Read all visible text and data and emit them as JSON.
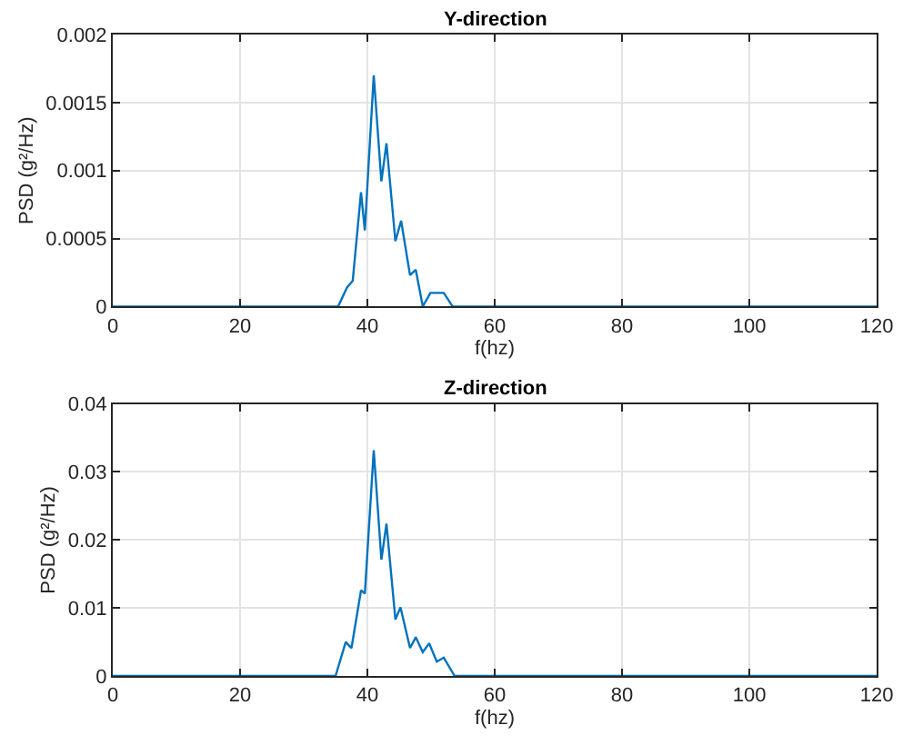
{
  "chart_data": [
    {
      "type": "line",
      "title": "Y-direction",
      "xlabel": "f(hz)",
      "ylabel": "PSD (g²/Hz)",
      "grid": true,
      "marker": "none",
      "line_style": "solid",
      "x": [
        0,
        30,
        35.4,
        36.8,
        37.7,
        39.0,
        39.6,
        41.0,
        42.2,
        43.0,
        44.4,
        45.3,
        46.7,
        47.6,
        48.7,
        49.9,
        50.9,
        52.0,
        53.4,
        120
      ],
      "series": [
        {
          "color": "#0072bd",
          "values": [
            0,
            0,
            0,
            0.00014,
            0.00019,
            0.00084,
            0.00056,
            0.0017,
            0.00092,
            0.0012,
            0.00048,
            0.00063,
            0.00023,
            0.00027,
            0,
            0.0001,
            0.0001,
            0.0001,
            0,
            0
          ]
        }
      ],
      "xlim": [
        0,
        120
      ],
      "xticks": [
        0,
        20,
        40,
        60,
        80,
        100,
        120
      ],
      "ylim": [
        0,
        0.002
      ],
      "yticks": [
        0,
        0.0005,
        0.001,
        0.0015,
        0.002
      ]
    },
    {
      "type": "line",
      "title": "Z-direction",
      "xlabel": "f(hz)",
      "ylabel": "PSD (g²/Hz)",
      "grid": true,
      "marker": "none",
      "line_style": "solid",
      "x": [
        0,
        35.0,
        36.6,
        37.5,
        39.0,
        39.6,
        41.0,
        42.2,
        43.0,
        44.4,
        45.2,
        46.7,
        47.6,
        48.7,
        49.7,
        50.9,
        52.0,
        53.7,
        120
      ],
      "series": [
        {
          "color": "#0072bd",
          "values": [
            0,
            0,
            0.005,
            0.0041,
            0.0126,
            0.0121,
            0.0332,
            0.0171,
            0.0224,
            0.0083,
            0.0101,
            0.0041,
            0.0057,
            0.0035,
            0.0048,
            0.0021,
            0.0027,
            0,
            0
          ]
        }
      ],
      "xlim": [
        0,
        120
      ],
      "xticks": [
        0,
        20,
        40,
        60,
        80,
        100,
        120
      ],
      "ylim": [
        0,
        0.04
      ],
      "yticks": [
        0,
        0.01,
        0.02,
        0.03,
        0.04
      ]
    }
  ]
}
